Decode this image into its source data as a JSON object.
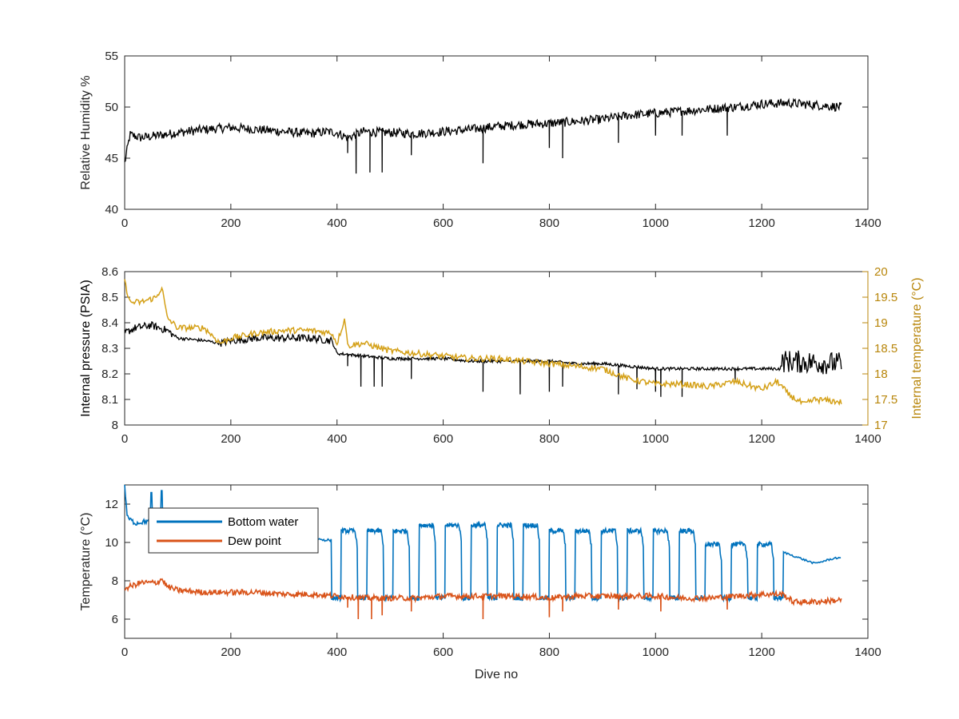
{
  "colors": {
    "rh": "#000000",
    "pressure": "#000000",
    "int_temp": "#D4A017",
    "int_temp_axis": "#B8860B",
    "bottom_water": "#0072BD",
    "dew_point": "#D95319",
    "axes": "#262626"
  },
  "chart_data": [
    {
      "type": "line",
      "xlabel": "",
      "ylabel": "Relative Humidity %",
      "xlim": [
        0,
        1400
      ],
      "ylim": [
        40,
        55
      ],
      "xticks": [
        "0",
        "200",
        "400",
        "600",
        "800",
        "1000",
        "1200",
        "1400"
      ],
      "yticks": [
        "40",
        "45",
        "50",
        "55"
      ],
      "grid": false,
      "series": [
        {
          "color": "#000000",
          "x": [
            0,
            10,
            30,
            60,
            100,
            150,
            200,
            250,
            300,
            350,
            380,
            400,
            420,
            450,
            500,
            550,
            600,
            650,
            700,
            750,
            800,
            850,
            900,
            950,
            1000,
            1050,
            1100,
            1150,
            1200,
            1250,
            1300,
            1350
          ],
          "y": [
            44.5,
            47.3,
            47.0,
            47.2,
            47.5,
            47.8,
            48.0,
            47.8,
            47.6,
            47.4,
            47.6,
            47.5,
            47.0,
            47.6,
            47.5,
            47.4,
            47.6,
            47.8,
            48.1,
            48.3,
            48.4,
            48.6,
            48.8,
            49.2,
            49.4,
            49.6,
            49.8,
            50.0,
            50.3,
            50.4,
            50.2,
            50.0
          ],
          "dips": [
            [
              420,
              45.5
            ],
            [
              436,
              43.5
            ],
            [
              462,
              43.6
            ],
            [
              485,
              43.6
            ],
            [
              540,
              45.3
            ],
            [
              675,
              44.5
            ],
            [
              800,
              46.0
            ],
            [
              825,
              45.0
            ],
            [
              930,
              46.5
            ],
            [
              1000,
              47.2
            ],
            [
              1050,
              47.2
            ],
            [
              1135,
              47.2
            ]
          ]
        }
      ]
    },
    {
      "type": "line",
      "xlabel": "",
      "ylabel": "Internal pressure (PSIA)",
      "y2label": "Internal temperature (°C)",
      "xlim": [
        0,
        1400
      ],
      "ylim": [
        8.0,
        8.6
      ],
      "y2lim": [
        17,
        20
      ],
      "xticks": [
        "0",
        "200",
        "400",
        "600",
        "800",
        "1000",
        "1200",
        "1400"
      ],
      "yticks": [
        "8",
        "8.1",
        "8.2",
        "8.3",
        "8.4",
        "8.5",
        "8.6"
      ],
      "y2ticks": [
        "17",
        "17.5",
        "18",
        "18.5",
        "19",
        "19.5",
        "20"
      ],
      "grid": false,
      "series": [
        {
          "color": "#000000",
          "axis": "left",
          "x": [
            0,
            20,
            50,
            80,
            100,
            150,
            180,
            200,
            250,
            300,
            350,
            390,
            400,
            450,
            500,
            550,
            600,
            650,
            700,
            750,
            800,
            850,
            900,
            950,
            1000,
            1050,
            1100,
            1150,
            1200,
            1235,
            1240,
            1350
          ],
          "y": [
            8.36,
            8.38,
            8.39,
            8.37,
            8.34,
            8.33,
            8.32,
            8.33,
            8.34,
            8.34,
            8.34,
            8.33,
            8.28,
            8.27,
            8.26,
            8.26,
            8.26,
            8.25,
            8.25,
            8.25,
            8.25,
            8.24,
            8.24,
            8.23,
            8.22,
            8.22,
            8.22,
            8.22,
            8.22,
            8.22,
            8.25,
            8.24
          ],
          "dips": [
            [
              420,
              8.23
            ],
            [
              445,
              8.15
            ],
            [
              470,
              8.15
            ],
            [
              485,
              8.15
            ],
            [
              540,
              8.18
            ],
            [
              675,
              8.13
            ],
            [
              745,
              8.12
            ],
            [
              800,
              8.13
            ],
            [
              825,
              8.15
            ],
            [
              930,
              8.12
            ],
            [
              965,
              8.14
            ],
            [
              1000,
              8.13
            ],
            [
              1010,
              8.11
            ],
            [
              1050,
              8.11
            ],
            [
              1150,
              8.17
            ]
          ]
        },
        {
          "color": "#D4A017",
          "axis": "right",
          "x": [
            0,
            10,
            30,
            60,
            70,
            80,
            100,
            150,
            180,
            200,
            250,
            300,
            350,
            390,
            400,
            415,
            420,
            450,
            500,
            550,
            600,
            650,
            700,
            750,
            800,
            850,
            900,
            950,
            1000,
            1050,
            1100,
            1150,
            1200,
            1230,
            1250,
            1280,
            1300,
            1350
          ],
          "y": [
            19.8,
            19.4,
            19.4,
            19.5,
            19.7,
            19.1,
            18.9,
            18.9,
            18.6,
            18.7,
            18.8,
            18.85,
            18.85,
            18.8,
            18.6,
            19.1,
            18.55,
            18.6,
            18.45,
            18.4,
            18.35,
            18.3,
            18.3,
            18.25,
            18.2,
            18.15,
            18.1,
            17.9,
            17.8,
            17.8,
            17.75,
            17.85,
            17.7,
            17.85,
            17.6,
            17.4,
            17.5,
            17.45
          ]
        }
      ]
    },
    {
      "type": "line",
      "xlabel": "Dive no",
      "ylabel": "Temperature (°C)",
      "xlim": [
        0,
        1400
      ],
      "ylim": [
        5,
        13
      ],
      "xticks": [
        "0",
        "200",
        "400",
        "600",
        "800",
        "1000",
        "1200",
        "1400"
      ],
      "yticks": [
        "6",
        "8",
        "10",
        "12"
      ],
      "grid": false,
      "legend": "top-left",
      "series": [
        {
          "name": "Bottom water",
          "color": "#0072BD",
          "x": [
            0,
            5,
            20,
            40,
            50,
            70,
            80
          ],
          "y": [
            13,
            11.3,
            11.0,
            11.1,
            11.1,
            11.0,
            11.0
          ],
          "oscillation": {
            "x_start": 390,
            "x_end": 1240,
            "period": 49,
            "duty": 0.65,
            "high": 10.6,
            "low": 7.1,
            "hi_mid": 10.9,
            "hi_late": 9.9
          },
          "tail": {
            "x": [
              1240,
              1260,
              1300,
              1340,
              1350
            ],
            "y": [
              9.5,
              9.3,
              8.9,
              9.2,
              9.15
            ]
          }
        },
        {
          "name": "Dew point",
          "color": "#D95319",
          "x": [
            0,
            30,
            60,
            70,
            80,
            100,
            150,
            200,
            250,
            300,
            350,
            400,
            450,
            500,
            550,
            600,
            650,
            700,
            750,
            800,
            850,
            900,
            950,
            1000,
            1050,
            1100,
            1150,
            1200,
            1240,
            1260,
            1300,
            1350
          ],
          "y": [
            7.6,
            7.9,
            7.9,
            8.1,
            7.7,
            7.5,
            7.4,
            7.4,
            7.4,
            7.3,
            7.3,
            7.2,
            7.1,
            7.1,
            7.1,
            7.2,
            7.2,
            7.2,
            7.2,
            7.1,
            7.2,
            7.2,
            7.2,
            7.2,
            7.1,
            7.1,
            7.2,
            7.3,
            7.3,
            6.9,
            6.9,
            7.0
          ],
          "dips": [
            [
              420,
              6.6
            ],
            [
              440,
              6.0
            ],
            [
              465,
              6.0
            ],
            [
              485,
              6.2
            ],
            [
              540,
              6.4
            ],
            [
              675,
              6.0
            ],
            [
              800,
              6.1
            ],
            [
              825,
              6.4
            ],
            [
              930,
              6.5
            ],
            [
              1010,
              6.4
            ],
            [
              1135,
              6.5
            ]
          ]
        }
      ]
    }
  ]
}
